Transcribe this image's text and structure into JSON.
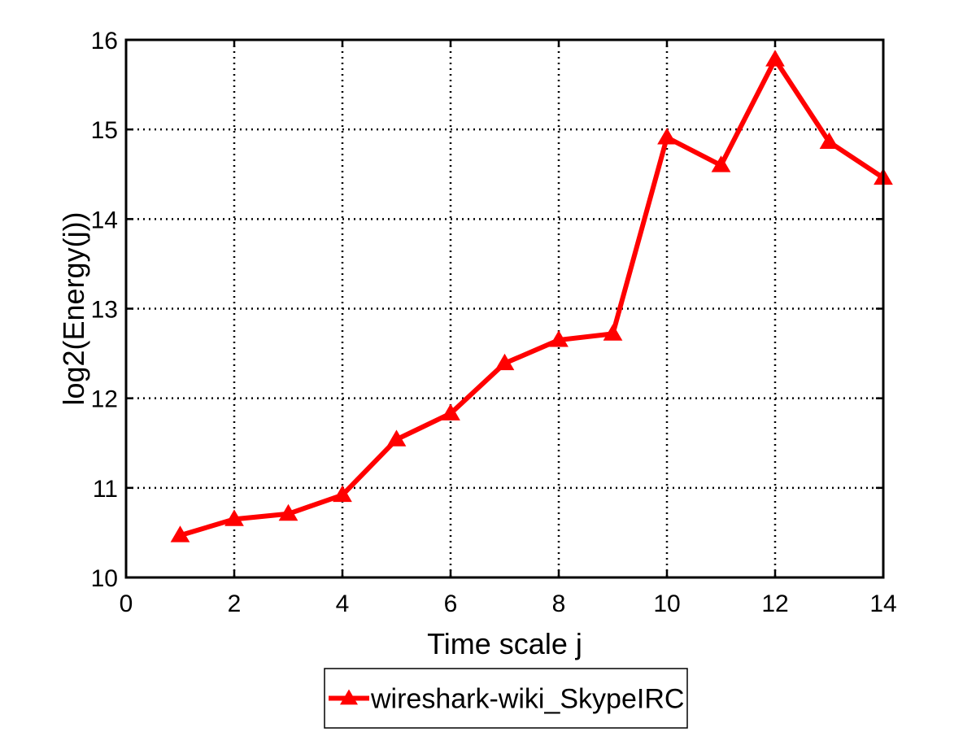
{
  "chart_data": {
    "type": "line",
    "title": "",
    "xlabel": "Time scale j",
    "ylabel": "log2(Energy(j))",
    "xlim": [
      0,
      14
    ],
    "ylim": [
      10,
      16
    ],
    "xticks": [
      "0",
      "2",
      "4",
      "6",
      "8",
      "10",
      "12",
      "14"
    ],
    "yticks": [
      "10",
      "11",
      "12",
      "13",
      "14",
      "15",
      "16"
    ],
    "grid": true,
    "legend_position": "bottom-outside",
    "series": [
      {
        "name": "wireshark-wiki_SkypeIRC",
        "color": "#ff0000",
        "marker": "triangle",
        "x": [
          1,
          2,
          3,
          4,
          5,
          6,
          7,
          8,
          9,
          10,
          11,
          12,
          13,
          14
        ],
        "y": [
          10.47,
          10.65,
          10.71,
          10.92,
          11.54,
          11.83,
          12.39,
          12.65,
          12.72,
          14.91,
          14.6,
          15.78,
          14.86,
          14.46
        ]
      }
    ]
  }
}
